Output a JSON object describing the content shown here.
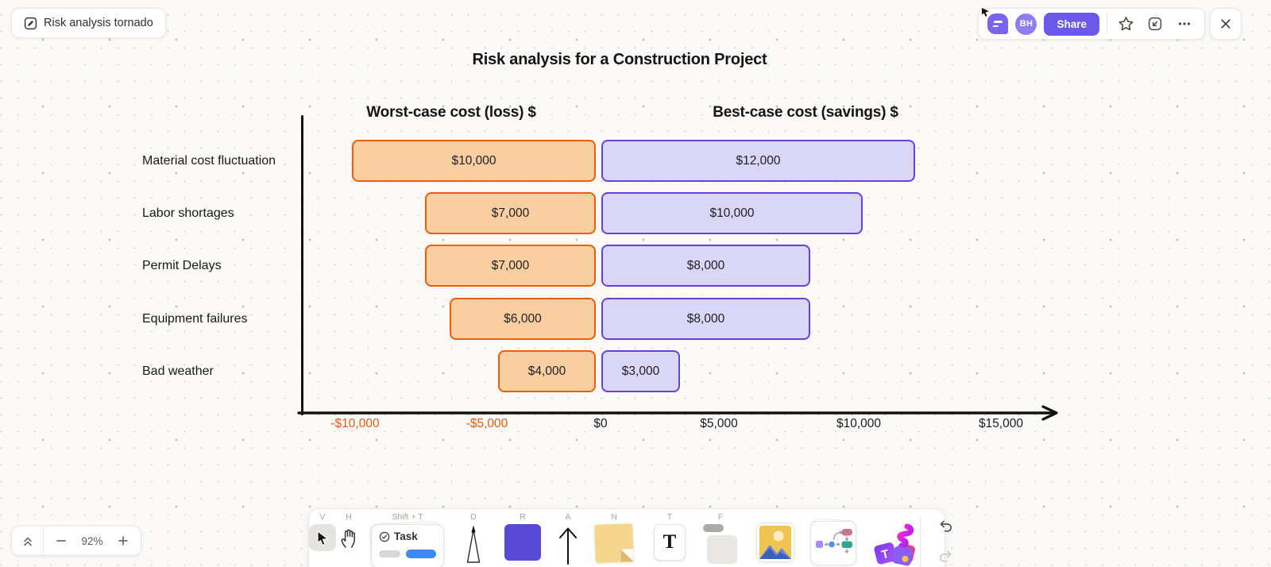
{
  "board": {
    "title": "Risk analysis tornado"
  },
  "top_bar": {
    "share_label": "Share",
    "collaborator_initials": "BH"
  },
  "chart_data": {
    "type": "bar",
    "orientation": "horizontal-tornado",
    "title": "Risk analysis for a Construction Project",
    "categories": [
      "Material cost fluctuation",
      "Labor shortages",
      "Permit Delays",
      "Equipment failures",
      "Bad weather"
    ],
    "series": [
      {
        "name": "Worst-case cost (loss) $",
        "side": "left",
        "values": [
          10000,
          7000,
          7000,
          6000,
          4000
        ],
        "labels": [
          "$10,000",
          "$7,000",
          "$7,000",
          "$6,000",
          "$4,000"
        ],
        "color_fill": "#F9CFA1",
        "color_border": "#EA5E0D"
      },
      {
        "name": "Best-case cost (savings) $",
        "side": "right",
        "values": [
          12000,
          10000,
          8000,
          8000,
          3000
        ],
        "labels": [
          "$12,000",
          "$10,000",
          "$8,000",
          "$8,000",
          "$3,000"
        ],
        "color_fill": "#D9D6F8",
        "color_border": "#6741D9"
      }
    ],
    "x_ticks": [
      {
        "label": "-$10,000",
        "value": -10000,
        "color": "#E8590C"
      },
      {
        "label": "-$5,000",
        "value": -5000,
        "color": "#E8590C"
      },
      {
        "label": "$0",
        "value": 0,
        "color": "#1A1A1F"
      },
      {
        "label": "$5,000",
        "value": 5000,
        "color": "#1A1A1F"
      },
      {
        "label": "$10,000",
        "value": 10000,
        "color": "#1A1A1F"
      },
      {
        "label": "$15,000",
        "value": 15000,
        "color": "#1A1A1F"
      }
    ],
    "xlim": [
      -12000,
      19000
    ],
    "axis_color": "#121212",
    "grid": false,
    "legend_position": "column-headers"
  },
  "toolbar": {
    "tools": [
      {
        "name": "select",
        "shortcut": "V"
      },
      {
        "name": "hand",
        "shortcut": "H"
      },
      {
        "name": "task",
        "shortcut": "Shift + T",
        "label": "Task"
      },
      {
        "name": "pen",
        "shortcut": "D"
      },
      {
        "name": "rectangle",
        "shortcut": "R"
      },
      {
        "name": "arrow",
        "shortcut": "A"
      },
      {
        "name": "note",
        "shortcut": "N"
      },
      {
        "name": "text",
        "shortcut": "T",
        "glyph": "T"
      },
      {
        "name": "frame",
        "shortcut": "F"
      },
      {
        "name": "image",
        "shortcut": ""
      },
      {
        "name": "diagram",
        "shortcut": ""
      },
      {
        "name": "stickers",
        "shortcut": ""
      }
    ]
  },
  "zoom_controls": {
    "level": "92%"
  }
}
